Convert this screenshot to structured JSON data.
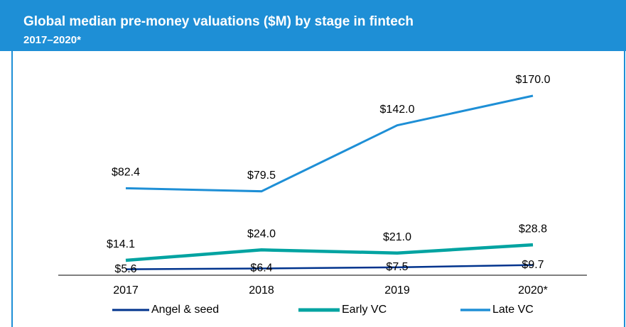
{
  "chart_data": {
    "type": "line",
    "title": "Global median pre-money valuations ($M) by stage in fintech",
    "subtitle": "2017–2020*",
    "categories": [
      "2017",
      "2018",
      "2019",
      "2020*"
    ],
    "series": [
      {
        "name": "Angel & seed",
        "color": "#00338d",
        "values": [
          5.6,
          6.4,
          7.5,
          9.7
        ],
        "value_labels": [
          "$5.6",
          "$6.4",
          "$7.5",
          "$9.7"
        ]
      },
      {
        "name": "Early VC",
        "color": "#00a3a1",
        "values": [
          14.1,
          24.0,
          21.0,
          28.8
        ],
        "value_labels": [
          "$14.1",
          "$24.0",
          "$21.0",
          "$28.8"
        ]
      },
      {
        "name": "Late VC",
        "color": "#1e8fd6",
        "values": [
          82.4,
          79.5,
          142.0,
          170.0
        ],
        "value_labels": [
          "$82.4",
          "$79.5",
          "$142.0",
          "$170.0"
        ]
      }
    ]
  }
}
